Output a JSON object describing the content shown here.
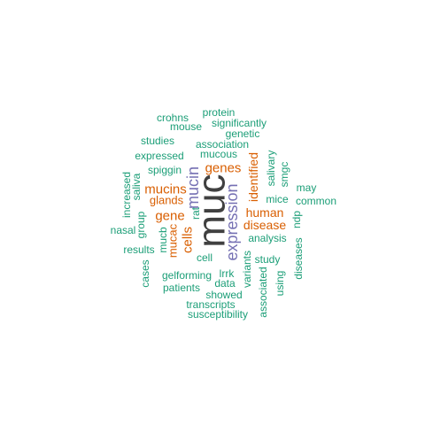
{
  "colors": {
    "background": "#ffffff",
    "tier1": "#404040",
    "tier2": "#7570b3",
    "tier3": "#d95f02",
    "tier4": "#1b9e77"
  },
  "words": [
    {
      "text": "muc",
      "tier": 1,
      "rotated": true
    },
    {
      "text": "expression",
      "tier": 2,
      "rotated": true
    },
    {
      "text": "mucin",
      "tier": 2,
      "rotated": true
    },
    {
      "text": "genes",
      "tier": 3,
      "rotated": false
    },
    {
      "text": "mucins",
      "tier": 3,
      "rotated": false
    },
    {
      "text": "gene",
      "tier": 3,
      "rotated": false
    },
    {
      "text": "glands",
      "tier": 3,
      "rotated": false
    },
    {
      "text": "cells",
      "tier": 3,
      "rotated": true
    },
    {
      "text": "mucac",
      "tier": 3,
      "rotated": true
    },
    {
      "text": "identified",
      "tier": 3,
      "rotated": true
    },
    {
      "text": "human",
      "tier": 3,
      "rotated": false
    },
    {
      "text": "disease",
      "tier": 3,
      "rotated": false
    },
    {
      "text": "protein",
      "tier": 4,
      "rotated": false
    },
    {
      "text": "crohns",
      "tier": 4,
      "rotated": false
    },
    {
      "text": "significantly",
      "tier": 4,
      "rotated": false
    },
    {
      "text": "mouse",
      "tier": 4,
      "rotated": false
    },
    {
      "text": "genetic",
      "tier": 4,
      "rotated": false
    },
    {
      "text": "studies",
      "tier": 4,
      "rotated": false
    },
    {
      "text": "association",
      "tier": 4,
      "rotated": false
    },
    {
      "text": "mucous",
      "tier": 4,
      "rotated": false
    },
    {
      "text": "expressed",
      "tier": 4,
      "rotated": false
    },
    {
      "text": "spiggin",
      "tier": 4,
      "rotated": false
    },
    {
      "text": "salivary",
      "tier": 4,
      "rotated": true
    },
    {
      "text": "smgc",
      "tier": 4,
      "rotated": true
    },
    {
      "text": "increased",
      "tier": 4,
      "rotated": true
    },
    {
      "text": "saliva",
      "tier": 4,
      "rotated": true
    },
    {
      "text": "may",
      "tier": 4,
      "rotated": false
    },
    {
      "text": "mice",
      "tier": 4,
      "rotated": false
    },
    {
      "text": "common",
      "tier": 4,
      "rotated": false
    },
    {
      "text": "rat",
      "tier": 4,
      "rotated": true
    },
    {
      "text": "group",
      "tier": 4,
      "rotated": true
    },
    {
      "text": "nasal",
      "tier": 4,
      "rotated": false
    },
    {
      "text": "mucb",
      "tier": 4,
      "rotated": true
    },
    {
      "text": "ndp",
      "tier": 4,
      "rotated": true
    },
    {
      "text": "analysis",
      "tier": 4,
      "rotated": false
    },
    {
      "text": "results",
      "tier": 4,
      "rotated": false
    },
    {
      "text": "variants",
      "tier": 4,
      "rotated": true
    },
    {
      "text": "diseases",
      "tier": 4,
      "rotated": true
    },
    {
      "text": "cell",
      "tier": 4,
      "rotated": false
    },
    {
      "text": "study",
      "tier": 4,
      "rotated": false
    },
    {
      "text": "cases",
      "tier": 4,
      "rotated": true
    },
    {
      "text": "gelforming",
      "tier": 4,
      "rotated": false
    },
    {
      "text": "lrrk",
      "tier": 4,
      "rotated": false
    },
    {
      "text": "data",
      "tier": 4,
      "rotated": false
    },
    {
      "text": "patients",
      "tier": 4,
      "rotated": false
    },
    {
      "text": "using",
      "tier": 4,
      "rotated": true
    },
    {
      "text": "showed",
      "tier": 4,
      "rotated": false
    },
    {
      "text": "associated",
      "tier": 4,
      "rotated": true
    },
    {
      "text": "transcripts",
      "tier": 4,
      "rotated": false
    },
    {
      "text": "susceptibility",
      "tier": 4,
      "rotated": false
    }
  ]
}
